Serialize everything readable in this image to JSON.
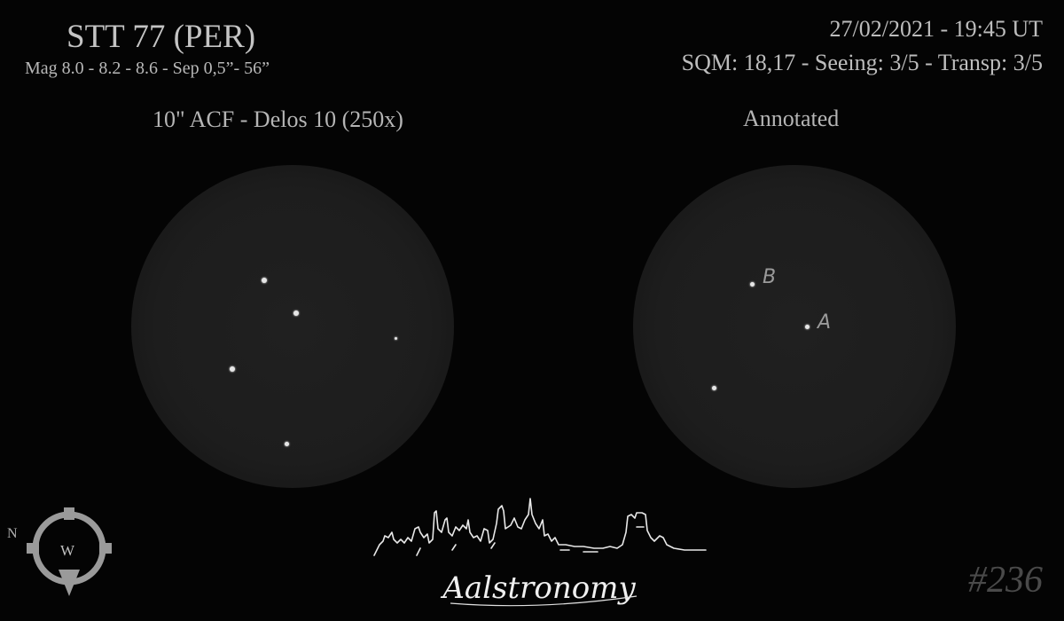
{
  "header": {
    "title": "STT 77 (PER)",
    "subtitle": "Mag 8.0 - 8.2 - 8.6 - Sep 0,5”- 56”",
    "date": "27/02/2021 - 19:45 UT",
    "conditions": "SQM: 18,17 - Seeing: 3/5 - Transp: 3/5"
  },
  "panels": {
    "left_label": "10\" ACF - Delos 10 (250x)",
    "right_label": "Annotated"
  },
  "annotations": {
    "star_a": "A",
    "star_b": "B"
  },
  "compass": {
    "north": "N",
    "west": "W"
  },
  "logo": {
    "text": "Aalstronomy"
  },
  "sketch_number": "#236",
  "colors": {
    "background": "#040404",
    "field": "#1e1e1e",
    "text": "#bdbdbd",
    "star": "#e6e6e6"
  }
}
